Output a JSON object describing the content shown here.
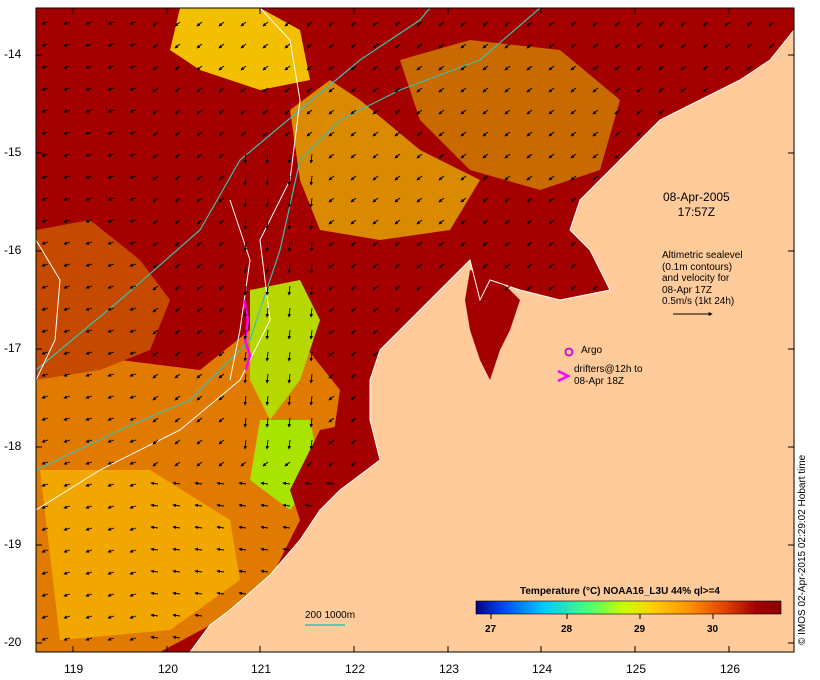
{
  "date_stamp": {
    "date": "08-Apr-2005",
    "time": "17:57Z"
  },
  "altimetry_note": {
    "lines": [
      "Altimetric sealevel",
      "(0.1m contours)",
      "and velocity for",
      "08-Apr 17Z",
      "0.5m/s (1kt 24h)"
    ]
  },
  "legend": {
    "argo_label": "Argo",
    "drifters_lines": [
      "drifters@12h to",
      "08-Apr 18Z"
    ],
    "isobath_label": "200  1000m",
    "argo_color": "#d100d1",
    "drifter_color": "#ff00ff",
    "isobath_color": "#3dbfb0"
  },
  "colorbar": {
    "title": "Temperature (°C) NOAA16_L3U 44% ql>=4",
    "ticks": [
      "27",
      "28",
      "29",
      "30"
    ],
    "colors": [
      "#00008b",
      "#0050ff",
      "#00c8ff",
      "#40ff80",
      "#c8ff00",
      "#ffd000",
      "#ff9000",
      "#e04000",
      "#a00000",
      "#8b0000"
    ]
  },
  "axes": {
    "lat_labels": [
      "-14",
      "-15",
      "-16",
      "-17",
      "-18",
      "-19",
      "-20"
    ],
    "lon_labels": [
      "119",
      "120",
      "121",
      "122",
      "123",
      "124",
      "125",
      "126"
    ]
  },
  "colors": {
    "land": "#ffcb9a",
    "ocean_warm": "#a40000",
    "ocean_mid": "#d95a00",
    "ocean_cool": "#f2a600",
    "ocean_cooler": "#c8e000"
  },
  "credit": "© IMOS 02-Apr-2015 02:29:02 Hobart time"
}
